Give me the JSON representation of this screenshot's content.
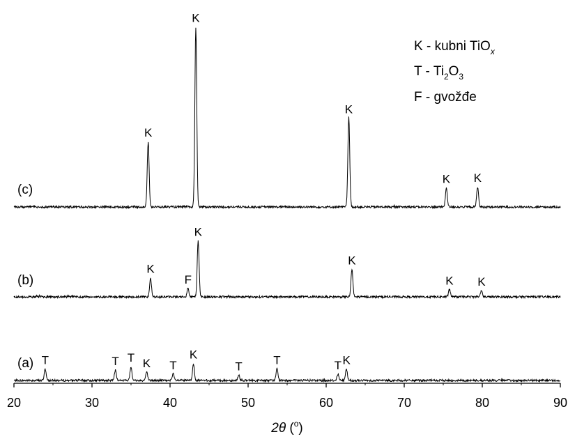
{
  "chart_data": {
    "type": "line",
    "xlabel": {
      "symbol_prefix": "2",
      "symbol": "θ",
      "unit_open": " (",
      "unit": "o",
      "unit_close": ")"
    },
    "xlim": [
      20,
      90
    ],
    "x_ticks": [
      "20",
      "30",
      "40",
      "50",
      "60",
      "70",
      "80",
      "90"
    ],
    "y_ticks_shown": false,
    "grid": false,
    "legend": {
      "placement": "top-right",
      "entries": [
        {
          "code": "K",
          "sep": " - ",
          "text": "kubni TiO",
          "sub": "x",
          "sub_italic": true
        },
        {
          "code": "T",
          "sep": " - ",
          "text": "Ti",
          "sub": "2",
          "text2": "O",
          "sub2": "3"
        },
        {
          "code": "F",
          "sep": " - ",
          "text": "gvožđe"
        }
      ]
    },
    "series": [
      {
        "name": "(a)",
        "peaks": [
          {
            "x": 24.0,
            "h": 0.11,
            "label": "T"
          },
          {
            "x": 33.0,
            "h": 0.1,
            "label": "T"
          },
          {
            "x": 35.0,
            "h": 0.13,
            "label": "T"
          },
          {
            "x": 37.0,
            "h": 0.08,
            "label": "K"
          },
          {
            "x": 40.4,
            "h": 0.06,
            "label": "T"
          },
          {
            "x": 43.0,
            "h": 0.16,
            "label": "K"
          },
          {
            "x": 48.8,
            "h": 0.05,
            "label": "T"
          },
          {
            "x": 53.7,
            "h": 0.11,
            "label": "T"
          },
          {
            "x": 61.5,
            "h": 0.06,
            "label": "T"
          },
          {
            "x": 62.6,
            "h": 0.11,
            "label": "K"
          }
        ]
      },
      {
        "name": "(b)",
        "peaks": [
          {
            "x": 37.5,
            "h": 0.18,
            "label": "K"
          },
          {
            "x": 42.3,
            "h": 0.08,
            "label": "F"
          },
          {
            "x": 43.6,
            "h": 0.53,
            "label": "K"
          },
          {
            "x": 63.3,
            "h": 0.26,
            "label": "K"
          },
          {
            "x": 75.8,
            "h": 0.07,
            "label": "K"
          },
          {
            "x": 79.9,
            "h": 0.06,
            "label": "K"
          }
        ]
      },
      {
        "name": "(c)",
        "peaks": [
          {
            "x": 37.2,
            "h": 0.62,
            "label": "K"
          },
          {
            "x": 43.3,
            "h": 1.7,
            "label": "K"
          },
          {
            "x": 62.9,
            "h": 0.84,
            "label": "K"
          },
          {
            "x": 75.4,
            "h": 0.18,
            "label": "K"
          },
          {
            "x": 79.4,
            "h": 0.19,
            "label": "K"
          }
        ]
      }
    ]
  }
}
